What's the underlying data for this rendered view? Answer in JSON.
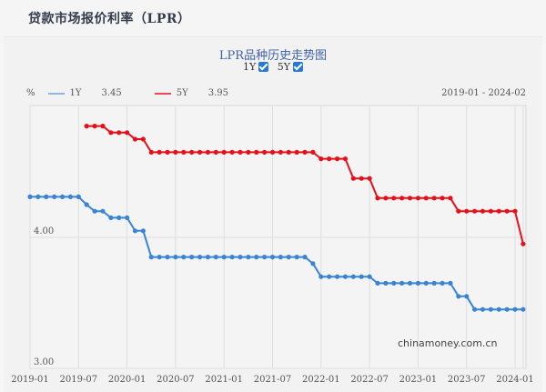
{
  "page": {
    "title": "贷款市场报价利率（LPR）"
  },
  "chart_header": {
    "title": "LPR品种历史走势图",
    "toggles": [
      {
        "label": "1Y",
        "checked": true
      },
      {
        "label": "5Y",
        "checked": true
      }
    ]
  },
  "legend": {
    "unit": "%",
    "items": [
      {
        "name": "1Y",
        "latest": "3.45",
        "color": "#3a84d6"
      },
      {
        "name": "5Y",
        "latest": "3.95",
        "color": "#e5101a"
      }
    ],
    "range": "2019-01 - 2024-02"
  },
  "watermark": "chinamoney.com.cn",
  "chart_data": {
    "type": "line",
    "title": "LPR品种历史走势图",
    "xlabel": "",
    "ylabel": "%",
    "ylim": [
      3.0,
      4.9
    ],
    "yticks": [
      "4.00",
      "3.00"
    ],
    "xticks": [
      "2019-01",
      "2019-07",
      "2020-01",
      "2020-07",
      "2021-01",
      "2021-07",
      "2022-01",
      "2022-07",
      "2023-01",
      "2023-07",
      "2024-01"
    ],
    "grid": true,
    "legend_position": "top-left",
    "x": [
      "2019-01",
      "2019-02",
      "2019-03",
      "2019-04",
      "2019-05",
      "2019-06",
      "2019-07",
      "2019-08",
      "2019-09",
      "2019-10",
      "2019-11",
      "2019-12",
      "2020-01",
      "2020-02",
      "2020-03",
      "2020-04",
      "2020-05",
      "2020-06",
      "2020-07",
      "2020-08",
      "2020-09",
      "2020-10",
      "2020-11",
      "2020-12",
      "2021-01",
      "2021-02",
      "2021-03",
      "2021-04",
      "2021-05",
      "2021-06",
      "2021-07",
      "2021-08",
      "2021-09",
      "2021-10",
      "2021-11",
      "2021-12",
      "2022-01",
      "2022-02",
      "2022-03",
      "2022-04",
      "2022-05",
      "2022-06",
      "2022-07",
      "2022-08",
      "2022-09",
      "2022-10",
      "2022-11",
      "2022-12",
      "2023-01",
      "2023-02",
      "2023-03",
      "2023-04",
      "2023-05",
      "2023-06",
      "2023-07",
      "2023-08",
      "2023-09",
      "2023-10",
      "2023-11",
      "2023-12",
      "2024-01",
      "2024-02"
    ],
    "series": [
      {
        "name": "1Y",
        "color": "#3a84d6",
        "values": [
          4.31,
          4.31,
          4.31,
          4.31,
          4.31,
          4.31,
          4.31,
          4.25,
          4.2,
          4.2,
          4.15,
          4.15,
          4.15,
          4.05,
          4.05,
          3.85,
          3.85,
          3.85,
          3.85,
          3.85,
          3.85,
          3.85,
          3.85,
          3.85,
          3.85,
          3.85,
          3.85,
          3.85,
          3.85,
          3.85,
          3.85,
          3.85,
          3.85,
          3.85,
          3.85,
          3.8,
          3.7,
          3.7,
          3.7,
          3.7,
          3.7,
          3.7,
          3.7,
          3.65,
          3.65,
          3.65,
          3.65,
          3.65,
          3.65,
          3.65,
          3.65,
          3.65,
          3.65,
          3.55,
          3.55,
          3.45,
          3.45,
          3.45,
          3.45,
          3.45,
          3.45,
          3.45
        ]
      },
      {
        "name": "5Y",
        "color": "#e5101a",
        "values": [
          null,
          null,
          null,
          null,
          null,
          null,
          null,
          4.85,
          4.85,
          4.85,
          4.8,
          4.8,
          4.8,
          4.75,
          4.75,
          4.65,
          4.65,
          4.65,
          4.65,
          4.65,
          4.65,
          4.65,
          4.65,
          4.65,
          4.65,
          4.65,
          4.65,
          4.65,
          4.65,
          4.65,
          4.65,
          4.65,
          4.65,
          4.65,
          4.65,
          4.65,
          4.6,
          4.6,
          4.6,
          4.6,
          4.45,
          4.45,
          4.45,
          4.3,
          4.3,
          4.3,
          4.3,
          4.3,
          4.3,
          4.3,
          4.3,
          4.3,
          4.3,
          4.2,
          4.2,
          4.2,
          4.2,
          4.2,
          4.2,
          4.2,
          4.2,
          3.95
        ]
      }
    ]
  }
}
